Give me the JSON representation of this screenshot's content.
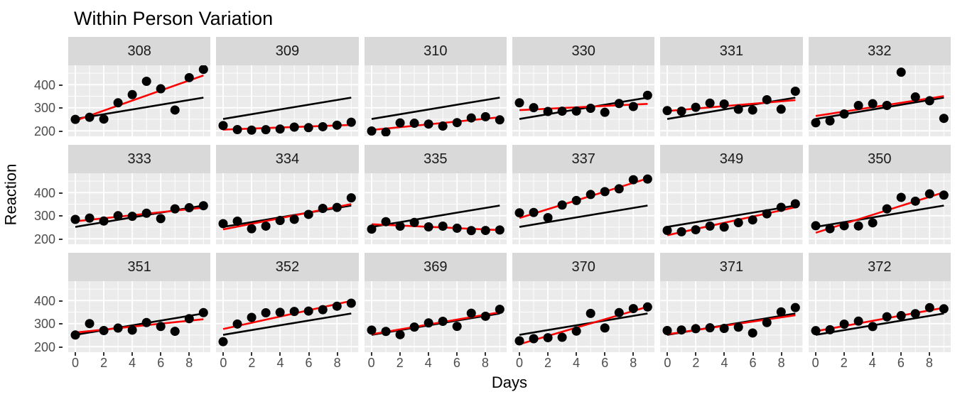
{
  "title": "Within Person Variation",
  "axes": {
    "x_label": "Days",
    "y_label": "Reaction",
    "x_ticks": [
      0,
      2,
      4,
      6,
      8
    ],
    "x_minor_ticks": [
      1,
      3,
      5,
      7,
      9
    ],
    "y_ticks": [
      400,
      300,
      200
    ],
    "y_minor_ticks": [
      250,
      350,
      450
    ],
    "x_domain": [
      -0.5,
      9.5
    ],
    "y_domain": [
      176,
      484
    ]
  },
  "styles": {
    "panel_bg": "#ebebeb",
    "strip_bg": "#d9d9d9",
    "grid_color": "#ffffff",
    "point_color": "#000000",
    "subject_fit_color": "#ff0000",
    "pooled_fit_color": "#000000",
    "tick_text_color": "#4d4d4d",
    "tick_mark_color": "#333333"
  },
  "chart_data": {
    "type": "scatter",
    "title": "Within Person Variation",
    "xlabel": "Days",
    "ylabel": "Reaction",
    "layout": {
      "facet_columns": 6,
      "facet_rows": 3,
      "grid": true,
      "legend": "none"
    },
    "x": [
      0,
      1,
      2,
      3,
      4,
      5,
      6,
      7,
      8,
      9
    ],
    "xlim": [
      -0.5,
      9.5
    ],
    "ylim": [
      176,
      484
    ],
    "lines": {
      "red": "per-subject ordinary least squares fit of Reaction on Days",
      "black": "pooled overall fit, identical in every panel (about 251 + 10.5 per day)"
    },
    "facets": [
      {
        "subject": "308",
        "values": [
          249.6,
          258.7,
          250.8,
          321.4,
          356.9,
          414.7,
          382.2,
          290.1,
          430.6,
          466.4
        ]
      },
      {
        "subject": "309",
        "values": [
          222.7,
          205.3,
          203.0,
          204.7,
          207.7,
          216.0,
          213.6,
          217.7,
          224.3,
          237.3
        ]
      },
      {
        "subject": "310",
        "values": [
          199.1,
          194.3,
          234.3,
          232.8,
          229.3,
          220.5,
          235.4,
          255.8,
          261.0,
          247.5
        ]
      },
      {
        "subject": "330",
        "values": [
          321.5,
          300.4,
          283.9,
          285.1,
          285.8,
          297.6,
          280.2,
          318.3,
          305.3,
          354.0
        ]
      },
      {
        "subject": "331",
        "values": [
          287.6,
          285.0,
          301.8,
          320.1,
          316.3,
          293.3,
          290.1,
          334.8,
          293.7,
          371.6
        ]
      },
      {
        "subject": "332",
        "values": [
          234.9,
          242.8,
          273.0,
          309.8,
          317.5,
          310.0,
          454.2,
          346.8,
          330.3,
          253.9
        ]
      },
      {
        "subject": "333",
        "values": [
          283.8,
          289.6,
          276.8,
          299.8,
          297.2,
          310.6,
          287.2,
          329.6,
          334.5,
          343.2
        ]
      },
      {
        "subject": "334",
        "values": [
          265.5,
          276.2,
          243.4,
          254.7,
          279.0,
          284.2,
          305.5,
          331.5,
          335.7,
          377.3
        ]
      },
      {
        "subject": "335",
        "values": [
          241.6,
          273.9,
          254.5,
          270.8,
          251.5,
          254.6,
          245.5,
          235.3,
          235.8,
          237.9
        ]
      },
      {
        "subject": "337",
        "values": [
          312.4,
          313.8,
          291.6,
          346.1,
          365.7,
          391.8,
          404.3,
          416.7,
          455.9,
          458.9
        ]
      },
      {
        "subject": "349",
        "values": [
          236.1,
          230.3,
          238.9,
          254.9,
          250.7,
          269.8,
          281.6,
          308.1,
          336.3,
          351.6
        ]
      },
      {
        "subject": "350",
        "values": [
          256.3,
          243.5,
          256.2,
          255.5,
          268.9,
          329.7,
          379.4,
          362.9,
          394.5,
          389.1
        ]
      },
      {
        "subject": "351",
        "values": [
          250.5,
          300.1,
          269.9,
          280.6,
          271.8,
          304.6,
          287.7,
          266.6,
          321.5,
          347.6
        ]
      },
      {
        "subject": "352",
        "values": [
          221.7,
          298.2,
          326.9,
          346.9,
          348.7,
          352.8,
          354.4,
          360.4,
          375.6,
          388.5
        ]
      },
      {
        "subject": "369",
        "values": [
          272.0,
          266.0,
          252.0,
          285.0,
          303.0,
          310.0,
          288.0,
          345.0,
          332.0,
          362.0
        ]
      },
      {
        "subject": "370",
        "values": [
          225.3,
          234.5,
          238.9,
          240.5,
          267.5,
          344.2,
          281.1,
          347.6,
          365.2,
          372.2
        ]
      },
      {
        "subject": "371",
        "values": [
          269.9,
          272.4,
          277.9,
          281.8,
          279.2,
          284.5,
          259.3,
          304.6,
          350.8,
          369.5
        ]
      },
      {
        "subject": "372",
        "values": [
          269.4,
          273.5,
          297.6,
          310.6,
          287.2,
          329.6,
          334.5,
          343.2,
          369.1,
          364.1
        ]
      }
    ]
  }
}
